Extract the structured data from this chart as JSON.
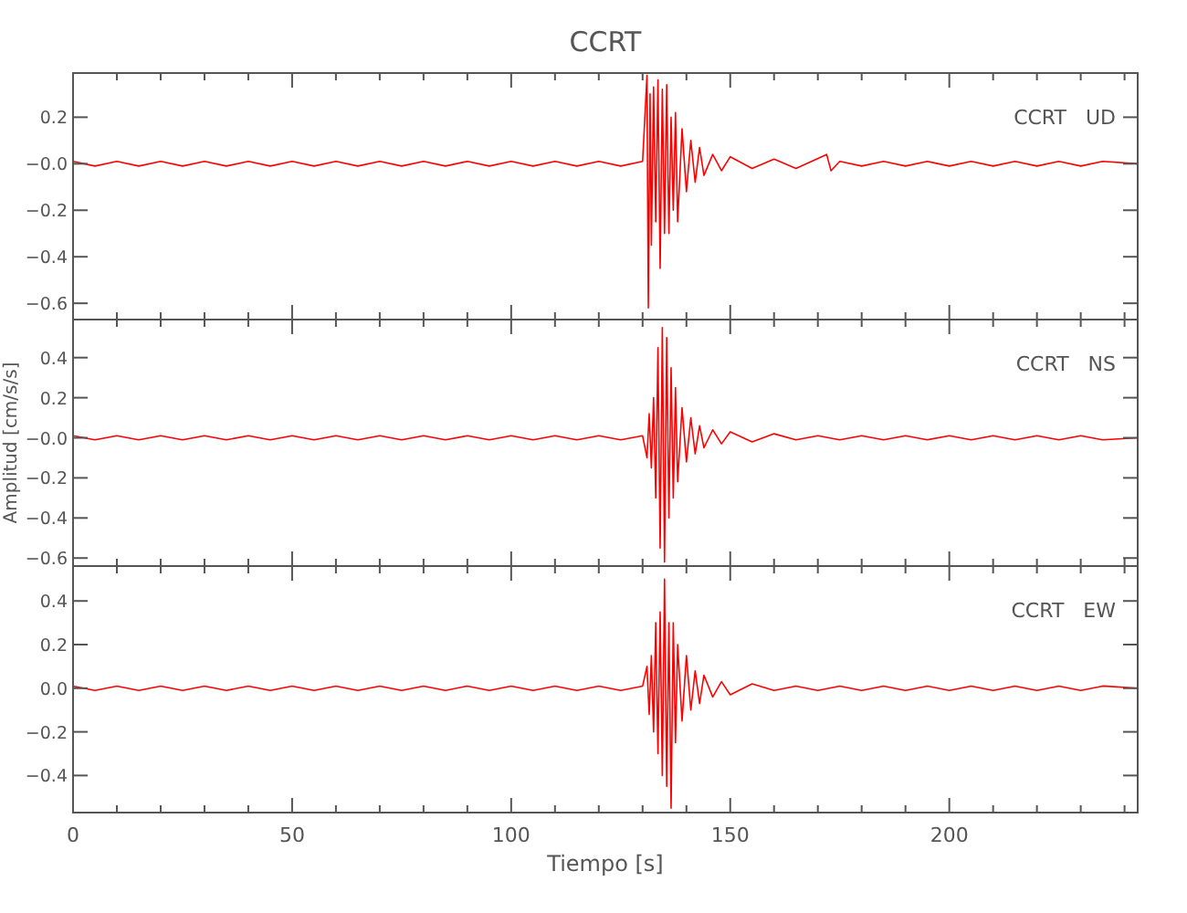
{
  "chart_data": [
    {
      "type": "line",
      "title": "CCRT",
      "annotations": [
        "CCRT   UD"
      ],
      "xlim": [
        0,
        243
      ],
      "ylim": [
        -0.67,
        0.39
      ],
      "xticks": [
        0,
        {
          "value": 10,
          "label": null
        },
        {
          "value": 20,
          "label": null
        },
        {
          "value": 30,
          "label": null
        },
        {
          "value": 40,
          "label": null
        },
        50,
        {
          "value": 60,
          "label": null
        },
        {
          "value": 70,
          "label": null
        },
        {
          "value": 80,
          "label": null
        },
        {
          "value": 90,
          "label": null
        },
        100,
        {
          "value": 110,
          "label": null
        },
        {
          "value": 120,
          "label": null
        },
        {
          "value": 130,
          "label": null
        },
        {
          "value": 140,
          "label": null
        },
        150,
        {
          "value": 160,
          "label": null
        },
        {
          "value": 170,
          "label": null
        },
        {
          "value": 180,
          "label": null
        },
        {
          "value": 190,
          "label": null
        },
        200,
        {
          "value": 210,
          "label": null
        },
        {
          "value": 220,
          "label": null
        },
        {
          "value": 230,
          "label": null
        },
        {
          "value": 240,
          "label": null
        }
      ],
      "yticks": [
        {
          "value": -0.6,
          "label": "−0.6"
        },
        {
          "value": -0.4,
          "label": "−0.4"
        },
        {
          "value": -0.2,
          "label": "−0.2"
        },
        {
          "value": 0,
          "label": "−0.0"
        },
        {
          "value": 0.2,
          "label": "0.2"
        }
      ],
      "tick_labels": "y",
      "series": [
        {
          "color": "#ff0000",
          "x": [
            0,
            5,
            10,
            15,
            20,
            25,
            30,
            35,
            40,
            45,
            50,
            55,
            60,
            65,
            70,
            75,
            80,
            85,
            90,
            95,
            100,
            105,
            110,
            115,
            120,
            125,
            130,
            131,
            131.3,
            131.7,
            132,
            132.5,
            133,
            133.5,
            134,
            134.5,
            135,
            135.5,
            136,
            136.5,
            137,
            137.5,
            138,
            139,
            140,
            141,
            142,
            143,
            144,
            146,
            148,
            150,
            155,
            160,
            165,
            172,
            173,
            175,
            180,
            185,
            190,
            195,
            200,
            205,
            210,
            215,
            220,
            225,
            230,
            235,
            243
          ],
          "values": [
            0.01,
            -0.01,
            0.01,
            -0.01,
            0.01,
            -0.01,
            0.01,
            -0.01,
            0.01,
            -0.01,
            0.01,
            -0.01,
            0.01,
            -0.01,
            0.01,
            -0.01,
            0.01,
            -0.01,
            0.01,
            -0.01,
            0.01,
            -0.01,
            0.01,
            -0.01,
            0.01,
            -0.01,
            0.01,
            0.38,
            -0.62,
            0.3,
            -0.35,
            0.33,
            -0.25,
            0.36,
            -0.45,
            0.32,
            -0.3,
            0.34,
            -0.3,
            0.2,
            -0.2,
            0.22,
            -0.25,
            0.15,
            -0.12,
            0.1,
            -0.08,
            0.07,
            -0.05,
            0.04,
            -0.03,
            0.03,
            -0.02,
            0.02,
            -0.02,
            0.04,
            -0.03,
            0.01,
            -0.01,
            0.01,
            -0.01,
            0.01,
            -0.01,
            0.01,
            -0.01,
            0.01,
            -0.01,
            0.01,
            -0.01,
            0.01,
            0
          ]
        }
      ]
    },
    {
      "type": "line",
      "ylabel": "Amplitud [cm/s/s]",
      "annotations": [
        "CCRT   NS"
      ],
      "xlim": [
        0,
        243
      ],
      "ylim": [
        -0.64,
        0.59
      ],
      "xticks": [
        0,
        {
          "value": 10,
          "label": null
        },
        {
          "value": 20,
          "label": null
        },
        {
          "value": 30,
          "label": null
        },
        {
          "value": 40,
          "label": null
        },
        50,
        {
          "value": 60,
          "label": null
        },
        {
          "value": 70,
          "label": null
        },
        {
          "value": 80,
          "label": null
        },
        {
          "value": 90,
          "label": null
        },
        100,
        {
          "value": 110,
          "label": null
        },
        {
          "value": 120,
          "label": null
        },
        {
          "value": 130,
          "label": null
        },
        {
          "value": 140,
          "label": null
        },
        150,
        {
          "value": 160,
          "label": null
        },
        {
          "value": 170,
          "label": null
        },
        {
          "value": 180,
          "label": null
        },
        {
          "value": 190,
          "label": null
        },
        200,
        {
          "value": 210,
          "label": null
        },
        {
          "value": 220,
          "label": null
        },
        {
          "value": 230,
          "label": null
        },
        {
          "value": 240,
          "label": null
        }
      ],
      "yticks": [
        {
          "value": -0.6,
          "label": "−0.6"
        },
        {
          "value": -0.4,
          "label": "−0.4"
        },
        {
          "value": -0.2,
          "label": "−0.2"
        },
        {
          "value": 0,
          "label": "−0.0"
        },
        {
          "value": 0.2,
          "label": "0.2"
        },
        {
          "value": 0.4,
          "label": "0.4"
        }
      ],
      "tick_labels": "y",
      "series": [
        {
          "color": "#ff0000",
          "x": [
            0,
            5,
            10,
            15,
            20,
            25,
            30,
            35,
            40,
            45,
            50,
            55,
            60,
            65,
            70,
            75,
            80,
            85,
            90,
            95,
            100,
            105,
            110,
            115,
            120,
            125,
            130,
            131,
            131.5,
            132,
            132.5,
            133,
            133.5,
            134,
            134.5,
            135,
            135.5,
            136,
            136.5,
            137,
            137.5,
            138,
            139,
            140,
            141,
            142,
            143,
            144,
            146,
            148,
            150,
            155,
            160,
            165,
            170,
            175,
            180,
            185,
            190,
            195,
            200,
            205,
            210,
            215,
            220,
            225,
            230,
            235,
            243
          ],
          "values": [
            0.01,
            -0.01,
            0.01,
            -0.01,
            0.01,
            -0.01,
            0.01,
            -0.01,
            0.01,
            -0.01,
            0.01,
            -0.01,
            0.01,
            -0.01,
            0.01,
            -0.01,
            0.01,
            -0.01,
            0.01,
            -0.01,
            0.01,
            -0.01,
            0.01,
            -0.01,
            0.01,
            -0.01,
            0.01,
            -0.1,
            0.12,
            -0.15,
            0.2,
            -0.3,
            0.45,
            -0.55,
            0.55,
            -0.62,
            0.5,
            -0.4,
            0.35,
            -0.3,
            0.25,
            -0.22,
            0.15,
            -0.12,
            0.1,
            -0.08,
            0.06,
            -0.05,
            0.04,
            -0.03,
            0.03,
            -0.02,
            0.02,
            -0.01,
            0.01,
            -0.01,
            0.01,
            -0.01,
            0.01,
            -0.01,
            0.01,
            -0.01,
            0.01,
            -0.01,
            0.01,
            -0.01,
            0.01,
            -0.01,
            0
          ]
        }
      ]
    },
    {
      "type": "line",
      "xlabel": "Tiempo [s]",
      "annotations": [
        "CCRT   EW"
      ],
      "xlim": [
        0,
        243
      ],
      "ylim": [
        -0.57,
        0.56
      ],
      "xticks": [
        0,
        {
          "value": 10,
          "label": null
        },
        {
          "value": 20,
          "label": null
        },
        {
          "value": 30,
          "label": null
        },
        {
          "value": 40,
          "label": null
        },
        50,
        {
          "value": 60,
          "label": null
        },
        {
          "value": 70,
          "label": null
        },
        {
          "value": 80,
          "label": null
        },
        {
          "value": 90,
          "label": null
        },
        100,
        {
          "value": 110,
          "label": null
        },
        {
          "value": 120,
          "label": null
        },
        {
          "value": 130,
          "label": null
        },
        {
          "value": 140,
          "label": null
        },
        150,
        {
          "value": 160,
          "label": null
        },
        {
          "value": 170,
          "label": null
        },
        {
          "value": 180,
          "label": null
        },
        {
          "value": 190,
          "label": null
        },
        200,
        {
          "value": 210,
          "label": null
        },
        {
          "value": 220,
          "label": null
        },
        {
          "value": 230,
          "label": null
        },
        {
          "value": 240,
          "label": null
        }
      ],
      "yticks": [
        {
          "value": -0.4,
          "label": "−0.4"
        },
        {
          "value": -0.2,
          "label": "−0.2"
        },
        {
          "value": 0,
          "label": "0.0"
        },
        {
          "value": 0.2,
          "label": "0.2"
        },
        {
          "value": 0.4,
          "label": "0.4"
        }
      ],
      "series": [
        {
          "color": "#ff0000",
          "x": [
            0,
            5,
            10,
            15,
            20,
            25,
            30,
            35,
            40,
            45,
            50,
            55,
            60,
            65,
            70,
            75,
            80,
            85,
            90,
            95,
            100,
            105,
            110,
            115,
            120,
            125,
            130,
            131,
            131.5,
            132,
            132.5,
            133,
            133.5,
            134,
            134.5,
            135,
            135.5,
            136,
            136.5,
            137,
            137.5,
            138,
            139,
            140,
            141,
            142,
            143,
            144,
            146,
            148,
            150,
            155,
            160,
            165,
            170,
            175,
            180,
            185,
            190,
            195,
            200,
            205,
            210,
            215,
            220,
            225,
            230,
            235,
            243
          ],
          "values": [
            0.01,
            -0.01,
            0.01,
            -0.01,
            0.01,
            -0.01,
            0.01,
            -0.01,
            0.01,
            -0.01,
            0.01,
            -0.01,
            0.01,
            -0.01,
            0.01,
            -0.01,
            0.01,
            -0.01,
            0.01,
            -0.01,
            0.01,
            -0.01,
            0.01,
            -0.01,
            0.01,
            -0.01,
            0.01,
            0.1,
            -0.12,
            0.15,
            -0.2,
            0.3,
            -0.3,
            0.35,
            -0.4,
            0.5,
            -0.45,
            0.3,
            -0.55,
            0.3,
            -0.25,
            0.2,
            -0.15,
            0.15,
            -0.1,
            0.08,
            -0.07,
            0.06,
            -0.04,
            0.03,
            -0.03,
            0.02,
            -0.01,
            0.01,
            -0.01,
            0.01,
            -0.01,
            0.01,
            -0.01,
            0.01,
            -0.01,
            0.01,
            -0.01,
            0.01,
            -0.01,
            0.01,
            -0.01,
            0.01,
            0
          ]
        }
      ]
    }
  ]
}
